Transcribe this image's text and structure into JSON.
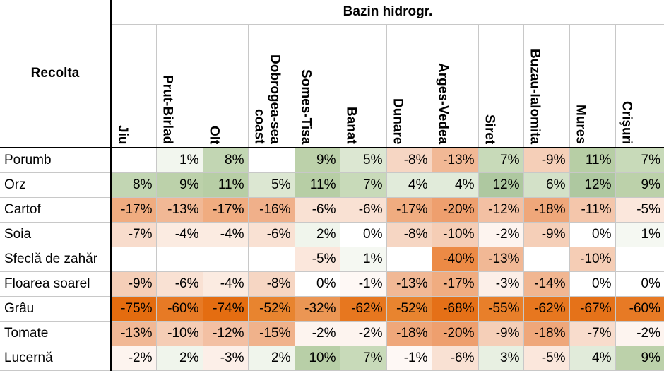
{
  "header": {
    "group_title": "Bazin hidrogr.",
    "row_header": "Recolta",
    "columns": [
      "Jiu",
      "Prut-Birlad",
      "Olt",
      "Dobrogea-sea\ncoast",
      "Somes-Tisa",
      "Banat",
      "Dunare",
      "Arges-Vedea",
      "Siret",
      "Buzau-Ialomita",
      "Mures",
      "Crişuri"
    ]
  },
  "rows": [
    {
      "label": "Porumb",
      "values": [
        "",
        "1%",
        "8%",
        "",
        "9%",
        "5%",
        "-8%",
        "-13%",
        "7%",
        "-9%",
        "11%",
        "7%"
      ],
      "colors": [
        "#ffffff",
        "#f2f6ee",
        "#c2d6b3",
        "#ffffff",
        "#bcd1aa",
        "#dce7d2",
        "#f6d6c3",
        "#f1b895",
        "#c8dab9",
        "#f5cfb8",
        "#b7cea5",
        "#c8dab9"
      ]
    },
    {
      "label": "Orz",
      "values": [
        "8%",
        "9%",
        "11%",
        "5%",
        "11%",
        "7%",
        "4%",
        "4%",
        "12%",
        "6%",
        "12%",
        "9%"
      ],
      "colors": [
        "#c2d6b3",
        "#bcd1aa",
        "#b7cea5",
        "#dce7d2",
        "#b7cea5",
        "#c8dab9",
        "#e1ebda",
        "#e1ebda",
        "#aec8a0",
        "#d3e1c8",
        "#aec8a0",
        "#bcd1aa"
      ]
    },
    {
      "label": "Cartof",
      "values": [
        "-17%",
        "-13%",
        "-17%",
        "-16%",
        "-6%",
        "-6%",
        "-17%",
        "-20%",
        "-12%",
        "-18%",
        "-11%",
        "-5%"
      ],
      "colors": [
        "#f0ac80",
        "#f1b895",
        "#f0ac80",
        "#f0b08a",
        "#f9e1d3",
        "#f9e1d3",
        "#f0ac80",
        "#ee9f6e",
        "#f3c0a3",
        "#efa77a",
        "#f4c6ab",
        "#fbe7dc"
      ]
    },
    {
      "label": "Soia",
      "values": [
        "-7%",
        "-4%",
        "-4%",
        "-6%",
        "2%",
        "0%",
        "-8%",
        "-10%",
        "-2%",
        "-9%",
        "0%",
        "1%"
      ],
      "colors": [
        "#f8dccc",
        "#fbebe1",
        "#fbebe1",
        "#f9e1d3",
        "#f0f5ec",
        "#ffffff",
        "#f6d6c3",
        "#f5cdb5",
        "#fdf4ef",
        "#f5cfb8",
        "#ffffff",
        "#f5f8f2"
      ]
    },
    {
      "label": "Sfeclă de zahăr",
      "values": [
        "",
        "",
        "",
        "",
        "-5%",
        "1%",
        "",
        "-40%",
        "-13%",
        "",
        "-10%",
        ""
      ],
      "colors": [
        "#ffffff",
        "#ffffff",
        "#ffffff",
        "#ffffff",
        "#fbe7dc",
        "#f5f8f2",
        "#ffffff",
        "#ec8a45",
        "#f1b895",
        "#ffffff",
        "#f5cdb5",
        "#ffffff"
      ]
    },
    {
      "label": "Floarea soarel",
      "values": [
        "-9%",
        "-6%",
        "-4%",
        "-8%",
        "0%",
        "-1%",
        "-13%",
        "-17%",
        "-3%",
        "-14%",
        "0%",
        "0%"
      ],
      "colors": [
        "#f5cfb8",
        "#f9e1d3",
        "#fbebe1",
        "#f6d6c3",
        "#ffffff",
        "#fef8f5",
        "#f1b895",
        "#f0ac80",
        "#fcefe8",
        "#f1b691",
        "#ffffff",
        "#ffffff"
      ]
    },
    {
      "label": "Grâu",
      "values": [
        "-75%",
        "-60%",
        "-74%",
        "-52%",
        "-32%",
        "-62%",
        "-52%",
        "-68%",
        "-55%",
        "-62%",
        "-67%",
        "-60%"
      ],
      "colors": [
        "#e46c0f",
        "#e77a25",
        "#e46d11",
        "#e8842f",
        "#eb9654",
        "#e7771f",
        "#e8842f",
        "#e57017",
        "#e87f2a",
        "#e7771f",
        "#e57219",
        "#e77a25"
      ]
    },
    {
      "label": "Tomate",
      "values": [
        "-13%",
        "-10%",
        "-12%",
        "-15%",
        "-2%",
        "-2%",
        "-18%",
        "-20%",
        "-9%",
        "-18%",
        "-7%",
        "-2%"
      ],
      "colors": [
        "#f1b895",
        "#f5cdb5",
        "#f3c0a3",
        "#f0b28b",
        "#fdf4ef",
        "#fdf4ef",
        "#efa77a",
        "#ee9f6e",
        "#f5cfb8",
        "#efa77a",
        "#f8dccc",
        "#fdf4ef"
      ]
    },
    {
      "label": "Lucernă",
      "values": [
        "-2%",
        "2%",
        "-3%",
        "2%",
        "10%",
        "7%",
        "-1%",
        "-6%",
        "3%",
        "-5%",
        "4%",
        "9%"
      ],
      "colors": [
        "#fdf4ef",
        "#f0f5ec",
        "#fcefe8",
        "#f0f5ec",
        "#b8cfa7",
        "#c8dab9",
        "#fef8f5",
        "#f9e1d3",
        "#e8f0e2",
        "#fbe7dc",
        "#e1ebda",
        "#bcd1aa"
      ]
    }
  ]
}
